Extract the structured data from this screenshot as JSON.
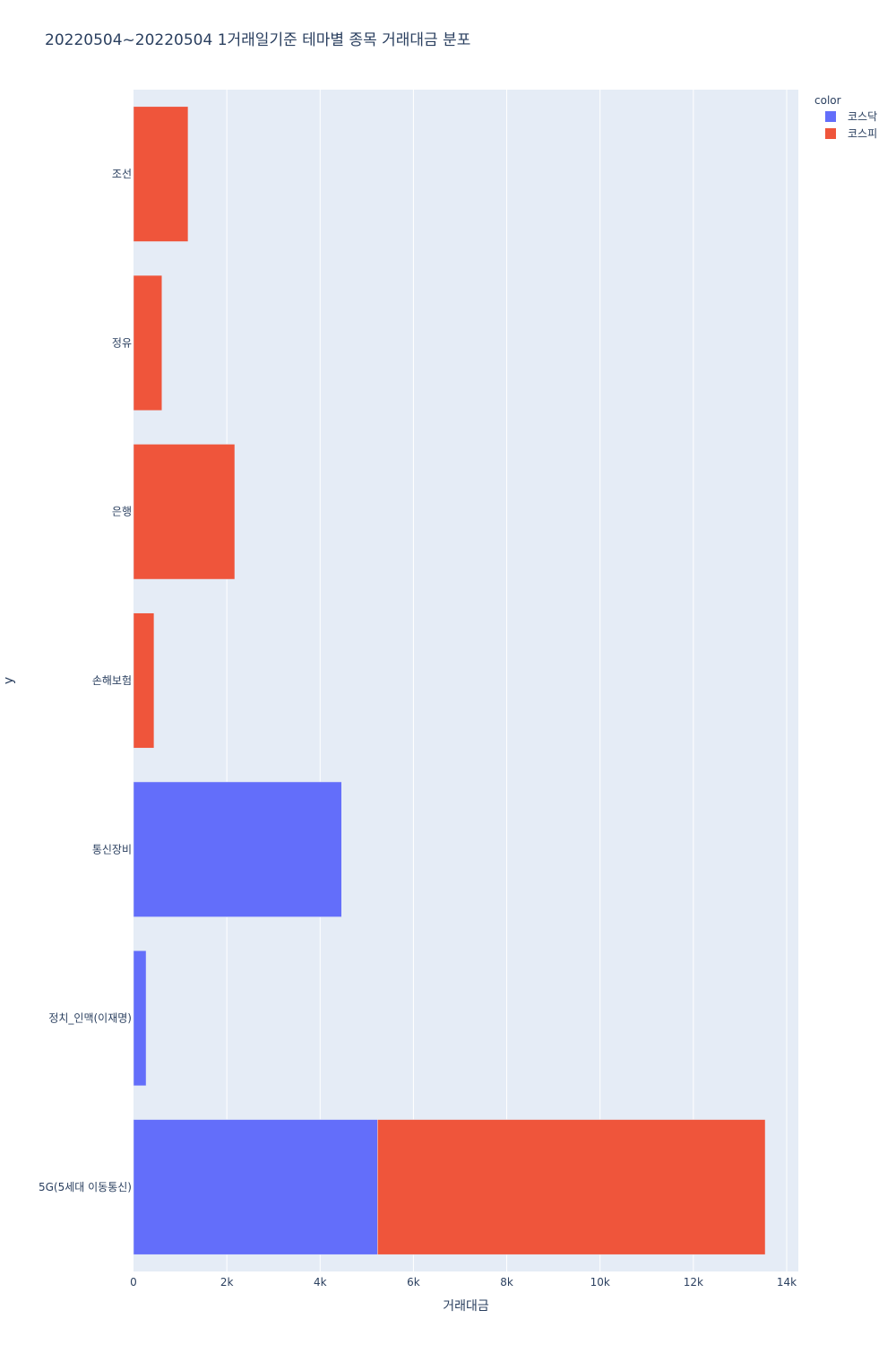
{
  "chart_data": {
    "type": "bar",
    "orientation": "horizontal",
    "barmode": "stack",
    "title": "20220504~20220504 1거래일기준 테마별 종목 거래대금 분포",
    "xlabel": "거래대금",
    "ylabel": "y",
    "xlim": [
      0,
      14250
    ],
    "xticks": [
      0,
      2000,
      4000,
      6000,
      8000,
      10000,
      12000,
      14000
    ],
    "xtick_labels": [
      "0",
      "2k",
      "4k",
      "6k",
      "8k",
      "10k",
      "12k",
      "14k"
    ],
    "categories": [
      "5G(5세대 이동통신)",
      "정치_인맥(이재명)",
      "통신장비",
      "손해보험",
      "은행",
      "정유",
      "조선"
    ],
    "legend_title": "color",
    "legend_position": "top-right",
    "grid": true,
    "series": [
      {
        "name": "코스닥",
        "color": "#636efa",
        "values": [
          5230,
          270,
          4460,
          0,
          0,
          0,
          0
        ]
      },
      {
        "name": "코스피",
        "color": "#ef553b",
        "values": [
          8310,
          0,
          0,
          440,
          2170,
          610,
          1170
        ]
      }
    ],
    "background": "#e5ecf6"
  }
}
